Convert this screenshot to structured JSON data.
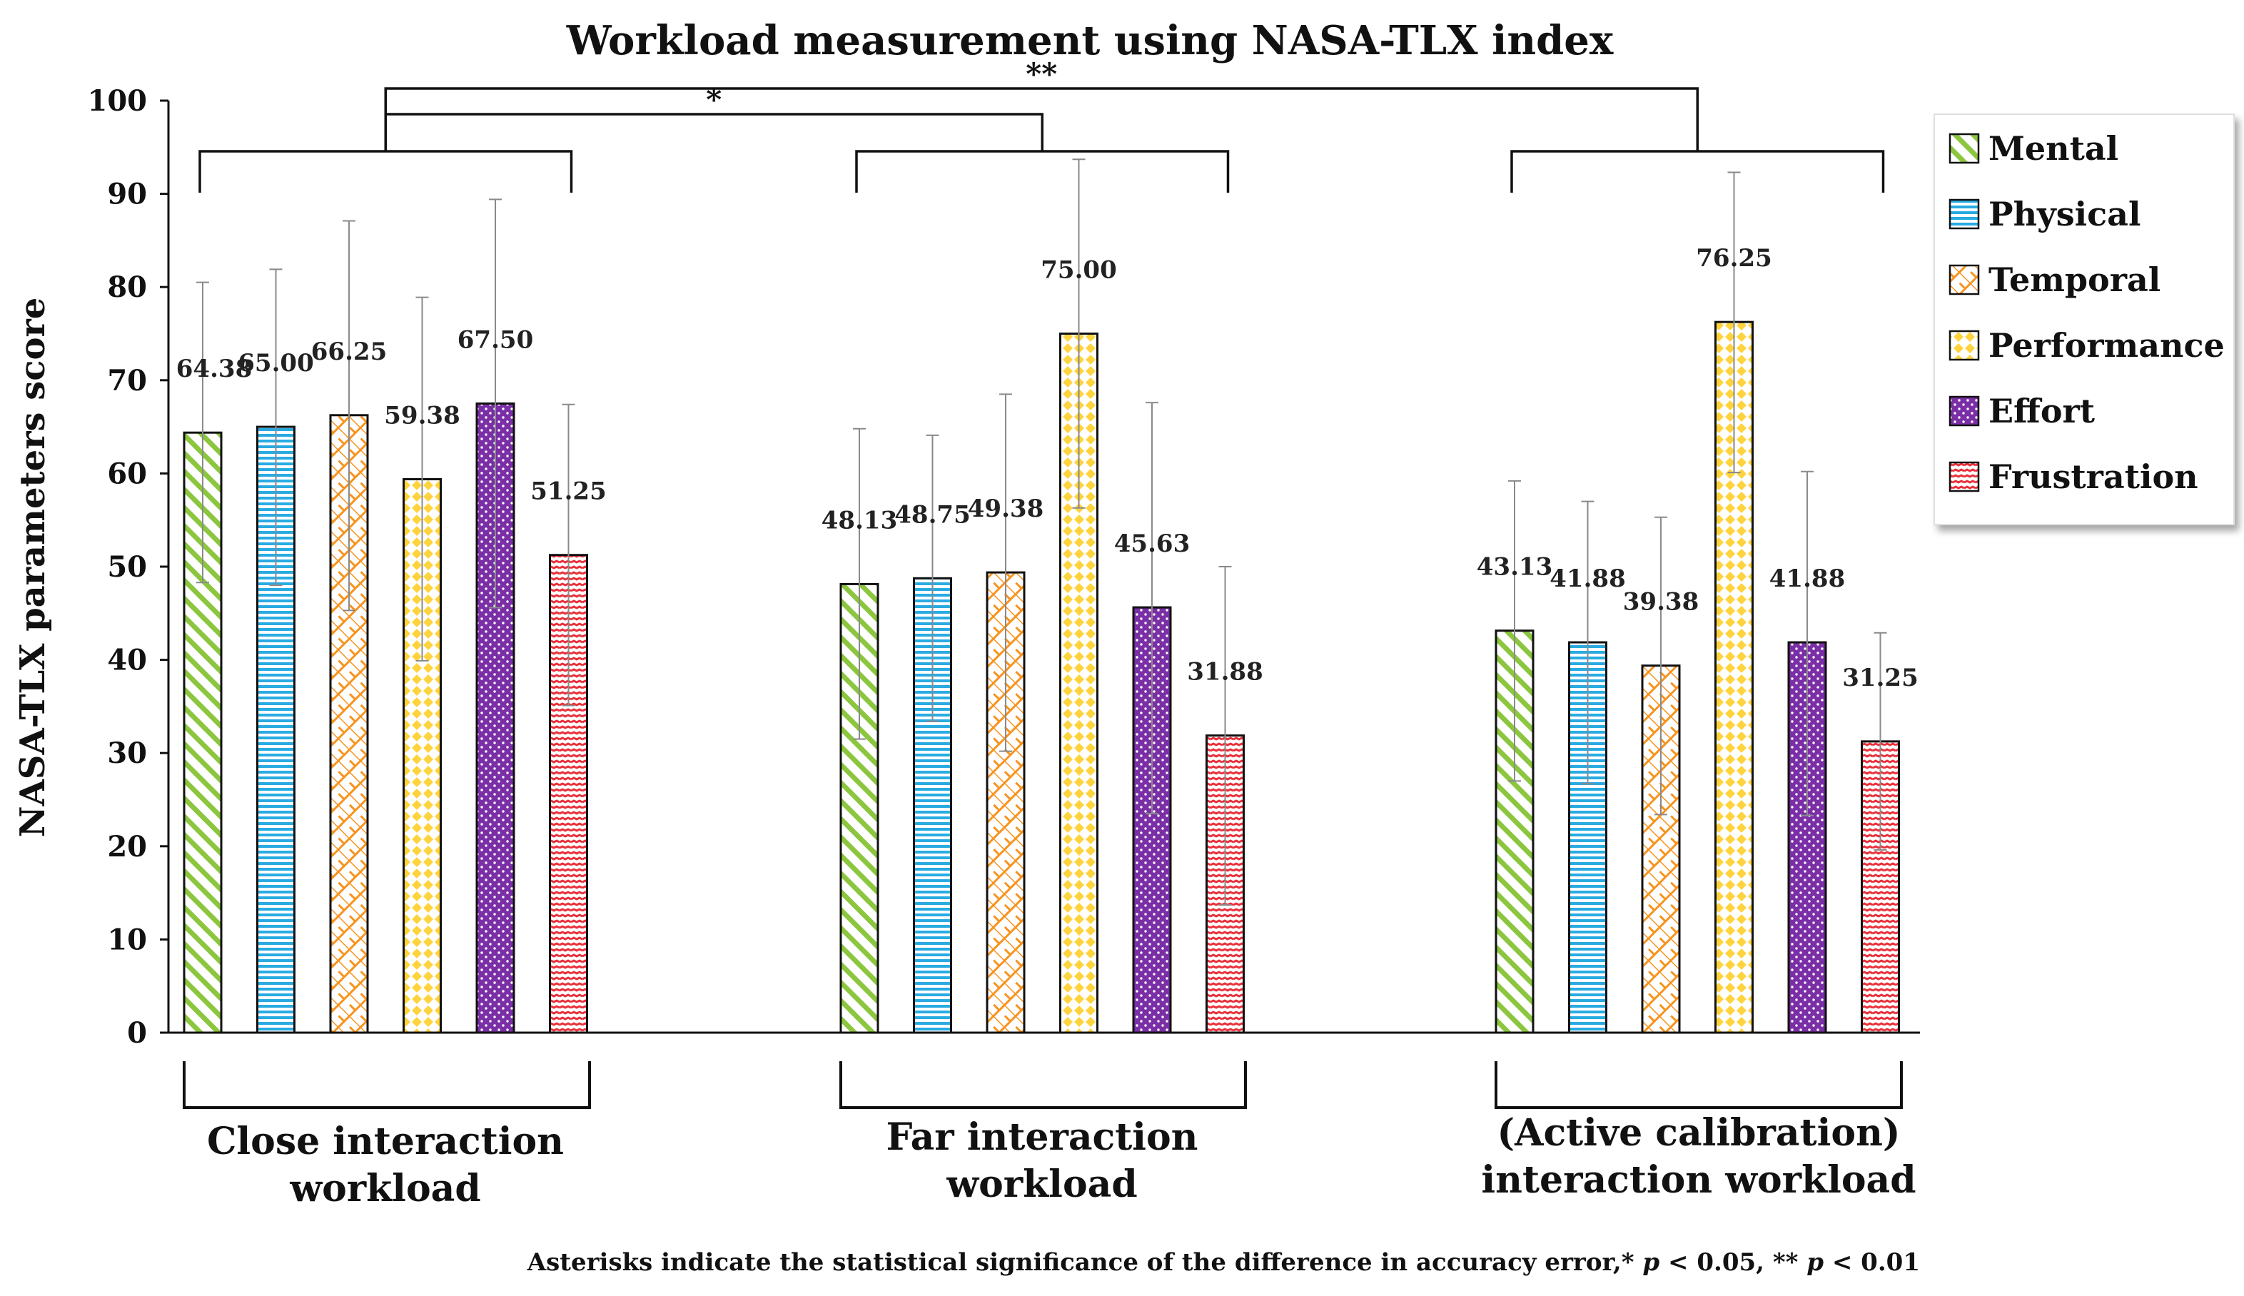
{
  "chart_data": {
    "type": "bar",
    "title": "Workload measurement using NASA-TLX index",
    "xlabel": "",
    "ylabel": "NASA-TLX parameters score",
    "ylim": [
      0,
      100
    ],
    "yticks": [
      "0",
      "10",
      "20",
      "30",
      "40",
      "50",
      "60",
      "70",
      "80",
      "90",
      "100"
    ],
    "grid": false,
    "legend_position": "top-right",
    "categories": [
      [
        "Close interaction",
        "workload"
      ],
      [
        "Far interaction",
        "workload"
      ],
      [
        "(Active calibration)",
        "interaction workload"
      ]
    ],
    "series": [
      {
        "name": "Mental",
        "values": [
          64.38,
          48.13,
          43.13
        ],
        "labels": [
          "64.38",
          "48.13",
          "43.13"
        ],
        "error_low": [
          48.3,
          31.5,
          27.0
        ],
        "error_high": [
          80.5,
          64.8,
          59.2
        ],
        "color": "#8CC63F",
        "pattern": "diagonal"
      },
      {
        "name": "Physical",
        "values": [
          65.0,
          48.75,
          41.88
        ],
        "labels": [
          "65.00",
          "48.75",
          "41.88"
        ],
        "error_low": [
          48.0,
          33.4,
          26.7
        ],
        "error_high": [
          81.9,
          64.1,
          57.0
        ],
        "color": "#29ABE2",
        "pattern": "horizontal"
      },
      {
        "name": "Temporal",
        "values": [
          66.25,
          49.38,
          39.38
        ],
        "labels": [
          "66.25",
          "49.38",
          "39.38"
        ],
        "error_low": [
          45.3,
          30.2,
          23.4
        ],
        "error_high": [
          87.1,
          68.5,
          55.3
        ],
        "color": "#F7931E",
        "pattern": "crosshatch"
      },
      {
        "name": "Performance",
        "values": [
          59.38,
          75.0,
          76.25
        ],
        "labels": [
          "59.38",
          "75.00",
          "76.25"
        ],
        "error_low": [
          39.9,
          56.3,
          60.1
        ],
        "error_high": [
          78.9,
          93.7,
          92.3
        ],
        "color": "#FFD33D",
        "pattern": "diamond"
      },
      {
        "name": "Effort",
        "values": [
          67.5,
          45.63,
          41.88
        ],
        "labels": [
          "67.50",
          "45.63",
          "41.88"
        ],
        "error_low": [
          45.6,
          23.5,
          23.3
        ],
        "error_high": [
          89.4,
          67.6,
          60.2
        ],
        "color": "#7B2FA6",
        "pattern": "dots"
      },
      {
        "name": "Frustration",
        "values": [
          51.25,
          31.88,
          31.25
        ],
        "labels": [
          "51.25",
          "31.88",
          "31.25"
        ],
        "error_low": [
          35.1,
          13.7,
          19.6
        ],
        "error_high": [
          67.4,
          50.0,
          42.9
        ],
        "color": "#E8303A",
        "pattern": "zigzag"
      }
    ],
    "significance": [
      {
        "from_group": 0,
        "to_group": 1,
        "label": "*"
      },
      {
        "from_group": 0,
        "to_group": 2,
        "label": "**"
      }
    ],
    "footnote": {
      "text": "Asterisks indicate the statistical significance of the difference in accuracy error,*",
      "p1_italic": "p",
      "p1_rest": " < 0.05, ** ",
      "p2_italic": "p",
      "p2_rest": " < 0.01"
    }
  }
}
